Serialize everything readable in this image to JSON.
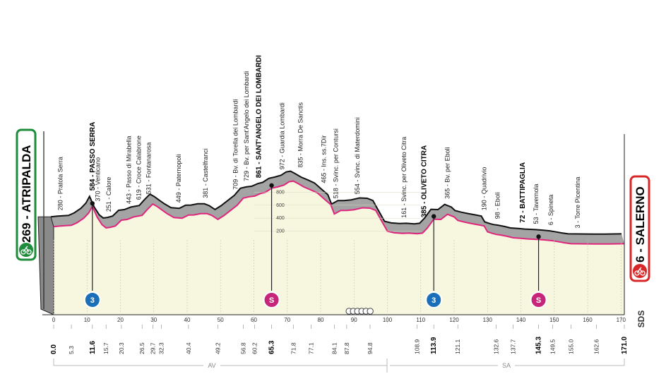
{
  "start": {
    "altitude": "269",
    "name": "ATRIPALDA",
    "color": "#1e8c3a"
  },
  "finish": {
    "altitude": "6",
    "name": "SALERNO",
    "color": "#d62828"
  },
  "logo_text": "SDS",
  "provinces": [
    "AV",
    "SA"
  ],
  "colors": {
    "profile_fill": "#f7f7e0",
    "mountain": "#a4a4a4",
    "road": "#e0267c",
    "climb": "#c7257a",
    "sprint": "#1b6fb8"
  },
  "chart_data": {
    "type": "area",
    "title": "",
    "xlabel": "",
    "ylabel": "",
    "xlim": [
      0,
      171
    ],
    "ylim": [
      0,
      1000
    ],
    "x_ticks": [
      0,
      10,
      20,
      30,
      40,
      50,
      60,
      70,
      80,
      90,
      100,
      110,
      120,
      130,
      140,
      150,
      160,
      170
    ],
    "y_ticks": [
      200,
      400,
      600,
      800
    ],
    "profile": [
      [
        0,
        269
      ],
      [
        2,
        280
      ],
      [
        5.3,
        290
      ],
      [
        7,
        330
      ],
      [
        9,
        400
      ],
      [
        10.5,
        480
      ],
      [
        11.6,
        584
      ],
      [
        13,
        420
      ],
      [
        14.5,
        300
      ],
      [
        15.7,
        251
      ],
      [
        17,
        260
      ],
      [
        18.5,
        280
      ],
      [
        20.3,
        370
      ],
      [
        22,
        380
      ],
      [
        24,
        420
      ],
      [
        26.5,
        443
      ],
      [
        28,
        530
      ],
      [
        29.7,
        619
      ],
      [
        31,
        580
      ],
      [
        32.3,
        531
      ],
      [
        34,
        470
      ],
      [
        36,
        410
      ],
      [
        38.5,
        400
      ],
      [
        40.4,
        449
      ],
      [
        42,
        450
      ],
      [
        44,
        470
      ],
      [
        46,
        470
      ],
      [
        47.5,
        440
      ],
      [
        49.2,
        381
      ],
      [
        51,
        440
      ],
      [
        53,
        520
      ],
      [
        55,
        600
      ],
      [
        56.8,
        709
      ],
      [
        58.5,
        729
      ],
      [
        60.2,
        740
      ],
      [
        62,
        780
      ],
      [
        63.5,
        800
      ],
      [
        65.3,
        861
      ],
      [
        67,
        880
      ],
      [
        69,
        910
      ],
      [
        70.5,
        960
      ],
      [
        71.8,
        972
      ],
      [
        73,
        940
      ],
      [
        75,
        880
      ],
      [
        77.1,
        835
      ],
      [
        79,
        790
      ],
      [
        81,
        700
      ],
      [
        83,
        610
      ],
      [
        84.1,
        465
      ],
      [
        86,
        520
      ],
      [
        87.8,
        518
      ],
      [
        90,
        530
      ],
      [
        92.5,
        560
      ],
      [
        94.8,
        554
      ],
      [
        96.5,
        520
      ],
      [
        98,
        380
      ],
      [
        100,
        200
      ],
      [
        102,
        175
      ],
      [
        104.5,
        165
      ],
      [
        106.5,
        170
      ],
      [
        108.9,
        161
      ],
      [
        110.5,
        170
      ],
      [
        112,
        250
      ],
      [
        113.9,
        385
      ],
      [
        116,
        380
      ],
      [
        118,
        460
      ],
      [
        120,
        420
      ],
      [
        121.1,
        365
      ],
      [
        123,
        340
      ],
      [
        125,
        320
      ],
      [
        127,
        300
      ],
      [
        129,
        280
      ],
      [
        130,
        190
      ],
      [
        131.5,
        165
      ],
      [
        132.6,
        150
      ],
      [
        134,
        140
      ],
      [
        136,
        120
      ],
      [
        137.7,
        98
      ],
      [
        140,
        90
      ],
      [
        142,
        80
      ],
      [
        145.3,
        72
      ],
      [
        147,
        65
      ],
      [
        149.5,
        53
      ],
      [
        151,
        40
      ],
      [
        153,
        22
      ],
      [
        155,
        6
      ],
      [
        160,
        4
      ],
      [
        162.6,
        3
      ],
      [
        166,
        3
      ],
      [
        171,
        6
      ]
    ],
    "km_labels": [
      {
        "km": "0.0",
        "x": 0,
        "bold": true
      },
      {
        "km": "5.3",
        "x": 5.3
      },
      {
        "km": "11.6",
        "x": 11.6,
        "bold": true
      },
      {
        "km": "15.7",
        "x": 15.7
      },
      {
        "km": "20.3",
        "x": 20.3
      },
      {
        "km": "26.5",
        "x": 26.5
      },
      {
        "km": "29.7",
        "x": 29.7
      },
      {
        "km": "32.3",
        "x": 32.3
      },
      {
        "km": "40.4",
        "x": 40.4
      },
      {
        "km": "49.2",
        "x": 49.2
      },
      {
        "km": "56.8",
        "x": 56.8
      },
      {
        "km": "60.2",
        "x": 60.2
      },
      {
        "km": "65.3",
        "x": 65.3,
        "bold": true
      },
      {
        "km": "71.8",
        "x": 71.8
      },
      {
        "km": "77.1",
        "x": 77.1
      },
      {
        "km": "84.1",
        "x": 84.1
      },
      {
        "km": "87.8",
        "x": 87.8
      },
      {
        "km": "94.8",
        "x": 94.8
      },
      {
        "km": "108.9",
        "x": 108.9
      },
      {
        "km": "113.9",
        "x": 113.9,
        "bold": true
      },
      {
        "km": "121.1",
        "x": 121.1
      },
      {
        "km": "132.6",
        "x": 132.6
      },
      {
        "km": "137.7",
        "x": 137.7
      },
      {
        "km": "145.3",
        "x": 145.3,
        "bold": true
      },
      {
        "km": "149.5",
        "x": 149.5
      },
      {
        "km": "155.0",
        "x": 155
      },
      {
        "km": "162.6",
        "x": 162.6
      },
      {
        "km": "171.0",
        "x": 171,
        "bold": true
      }
    ],
    "waypoints": [
      {
        "x": 2,
        "label": "280 - Pratola Serra"
      },
      {
        "x": 11.6,
        "label": "584 - PASSO SERRA",
        "bold": true
      },
      {
        "x": 13.2,
        "label": "370 - Venticano"
      },
      {
        "x": 16.5,
        "label": "251 - Calore"
      },
      {
        "x": 22.5,
        "label": "443 - Passo di Mirabella"
      },
      {
        "x": 25.5,
        "label": "619 - Croce Calabrone"
      },
      {
        "x": 28.5,
        "label": "531 - Fontanarosa"
      },
      {
        "x": 37.5,
        "label": "449 - Paternopoli"
      },
      {
        "x": 45.5,
        "label": "381 - Castelfranci"
      },
      {
        "x": 54.5,
        "label": "709 - Bv. di Torella dei Lombardi"
      },
      {
        "x": 57.8,
        "label": "729 - Bv. per Sant'Angelo dei Lombardi"
      },
      {
        "x": 61.5,
        "label": "861 - SANT'ANGELO DEI LOMBARDI",
        "bold": true
      },
      {
        "x": 68.5,
        "label": "972 - Guardia Lombardi"
      },
      {
        "x": 74,
        "label": "835 - Morra De Sanctis"
      },
      {
        "x": 81,
        "label": "465 - Ins. ss.7Dir"
      },
      {
        "x": 84.5,
        "label": "518 - Svinc. per Contursi"
      },
      {
        "x": 91,
        "label": "554 - Svinc. di Materdomini"
      },
      {
        "x": 105,
        "label": "161 - Svinc. per Oliveto Citra"
      },
      {
        "x": 111,
        "label": "385 - OLIVETO CITRA",
        "bold": true
      },
      {
        "x": 118,
        "label": "365 - Bv. per Eboli"
      },
      {
        "x": 129,
        "label": "190 - Quadrivio"
      },
      {
        "x": 133,
        "label": "98 - Eboli"
      },
      {
        "x": 140.5,
        "label": "72 - BATTIPAGLIA",
        "bold": true
      },
      {
        "x": 144.5,
        "label": "53 - Tavernola"
      },
      {
        "x": 149,
        "label": "6 - Spineta"
      },
      {
        "x": 157,
        "label": "3 - Torre Picentina"
      }
    ],
    "markers": [
      {
        "type": "climb",
        "x": 11.6,
        "label": "3"
      },
      {
        "type": "sprint",
        "x": 65.3,
        "label": "S"
      },
      {
        "type": "climb",
        "x": 113.9,
        "label": "3"
      },
      {
        "type": "sprint",
        "x": 145.3,
        "label": "S"
      }
    ]
  }
}
